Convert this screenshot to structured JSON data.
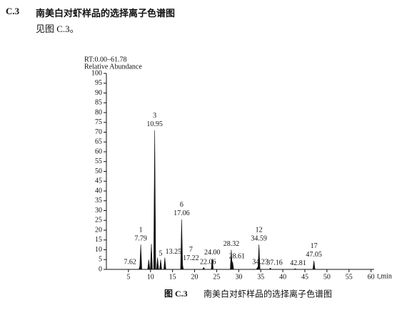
{
  "section": {
    "number": "C.3",
    "title": "南美白对虾样品的选择离子色谱图",
    "text": "见图 C.3。"
  },
  "chart_data": {
    "type": "peaks",
    "rt_range": "RT:0.00–61.78",
    "ylabel": "Relative Abundance",
    "xlabel": "t,min",
    "x": [
      7.62,
      7.79,
      9.6,
      10.2,
      10.95,
      11.6,
      12.3,
      13.25,
      17.06,
      17.22,
      22.06,
      24.0,
      28.32,
      28.61,
      34.23,
      34.59,
      37.16,
      42.81,
      47.05
    ],
    "values": [
      2,
      12.7,
      5,
      13,
      71,
      6,
      5,
      6,
      25.5,
      3,
      1,
      5.5,
      10,
      4,
      1,
      12.7,
      0.7,
      0.4,
      4.4
    ],
    "peak_labels": [
      "7.62",
      "7.79",
      null,
      null,
      "10.95",
      null,
      null,
      "13.25",
      "17.06",
      "17.22",
      "22.06",
      "24.00",
      "28.32",
      "28.61",
      "34.23",
      "34.59",
      "37.16",
      "42.81",
      "47.05"
    ],
    "peak_numbers": [
      null,
      "1",
      null,
      null,
      "3",
      null,
      "5",
      null,
      "6",
      "7",
      null,
      null,
      null,
      null,
      null,
      "12",
      null,
      null,
      "17"
    ],
    "color": "#111111",
    "xlim": [
      0,
      62
    ],
    "xticks": [
      5,
      10,
      15,
      20,
      25,
      30,
      35,
      40,
      45,
      50,
      55,
      60
    ],
    "ylim": [
      0,
      100
    ],
    "yticks": [
      0,
      5,
      10,
      15,
      20,
      25,
      30,
      35,
      40,
      45,
      50,
      55,
      60,
      65,
      70,
      75,
      80,
      85,
      90,
      95,
      100
    ]
  },
  "caption": {
    "number": "图 C.3",
    "title": "南美白对虾样品的选择离子色谱图"
  }
}
